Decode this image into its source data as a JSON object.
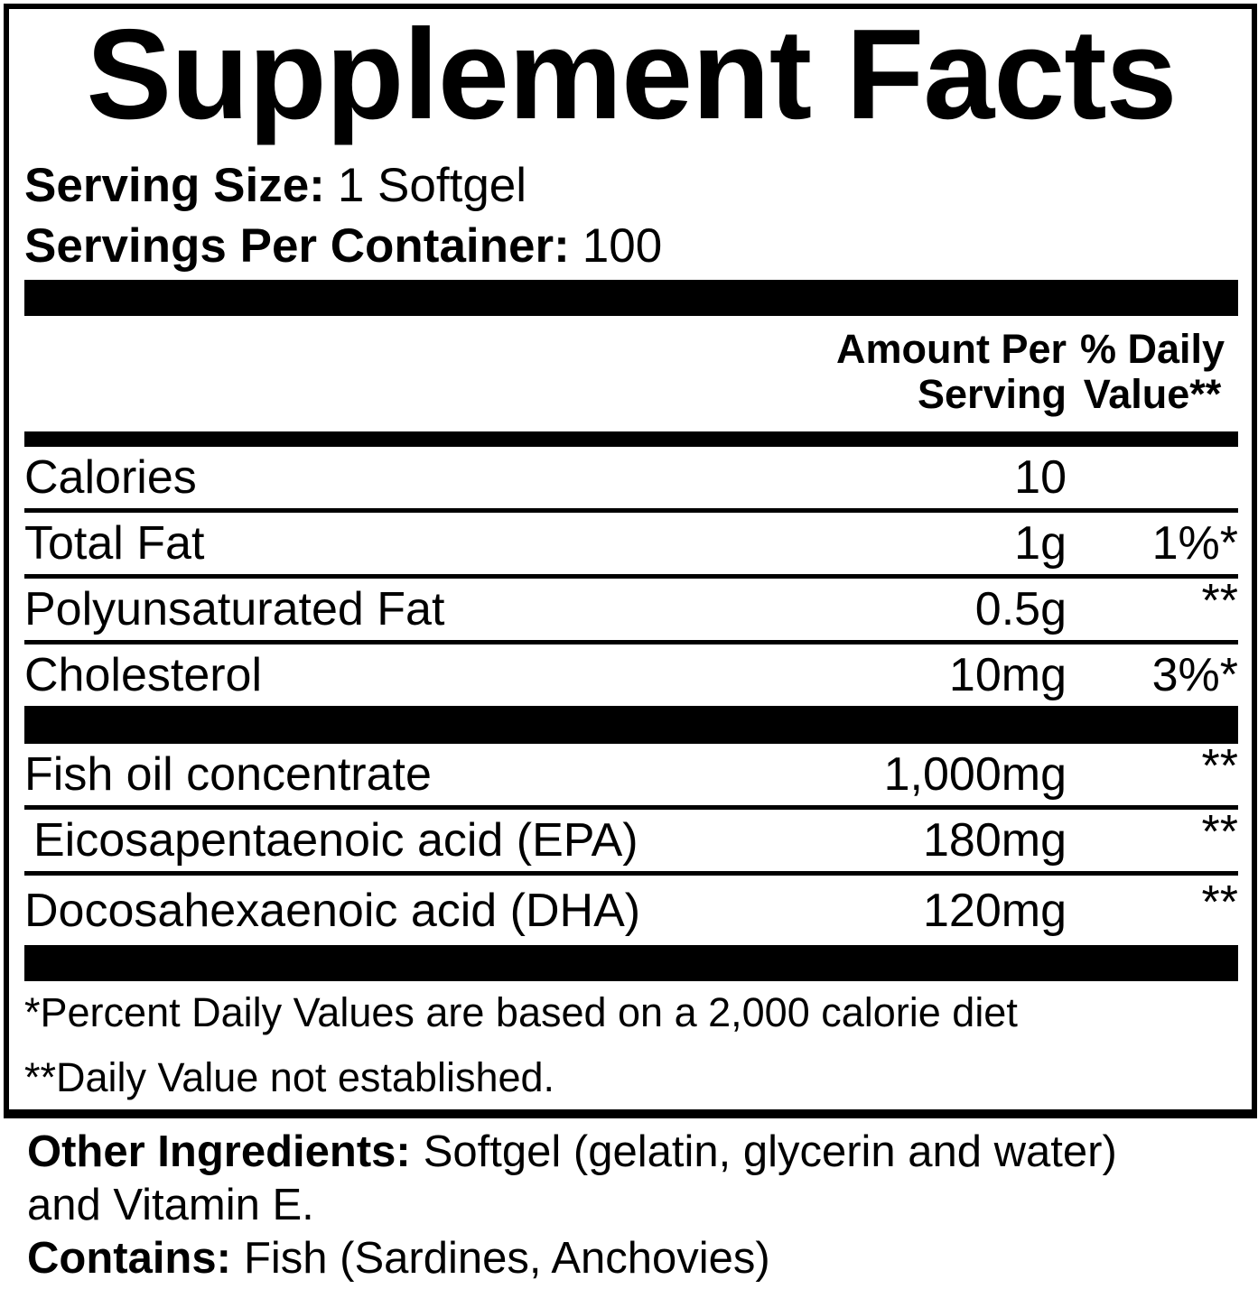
{
  "colors": {
    "text": "#000000",
    "background": "#ffffff",
    "bars": "#000000"
  },
  "header": {
    "title": "Supplement Facts",
    "serving_size": {
      "label": "Serving Size:",
      "value": "1 Softgel"
    },
    "servings_per_container": {
      "label": "Servings Per Container:",
      "value": "100"
    }
  },
  "table": {
    "column_headers": {
      "amount": {
        "line1": "Amount Per",
        "line2": "Serving"
      },
      "daily_value": {
        "line1": "% Daily",
        "line2": "Value**"
      }
    },
    "rows": [
      {
        "label": "Calories",
        "amount": "10",
        "dv": ""
      },
      {
        "label": "Total Fat",
        "amount": "1g",
        "dv": "1%*"
      },
      {
        "label": "Polyunsaturated Fat",
        "amount": "0.5g",
        "dv": "**"
      },
      {
        "label": "Cholesterol",
        "amount": "10mg",
        "dv": "3%*"
      }
    ],
    "rows2": [
      {
        "label": "Fish oil concentrate",
        "amount": "1,000mg",
        "dv": "**"
      },
      {
        "label": "Eicosapentaenoic acid (EPA)",
        "amount": "180mg",
        "dv": "**"
      },
      {
        "label": "Docosahexaenoic acid (DHA)",
        "amount": "120mg",
        "dv": "**"
      }
    ]
  },
  "footnotes": {
    "line1": "*Percent Daily Values are based on a 2,000 calorie diet",
    "line2": "**Daily Value not established."
  },
  "other_info": {
    "other_ingredients_label": "Other Ingredients:",
    "other_ingredients_value": "Softgel (gelatin, glycerin and water)",
    "other_ingredients_value_line2": "and Vitamin E.",
    "contains_label": "Contains:",
    "contains_value": "Fish (Sardines, Anchovies)"
  }
}
